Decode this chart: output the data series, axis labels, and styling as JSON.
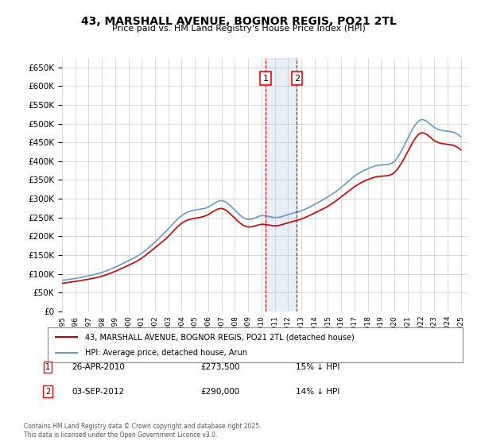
{
  "title": "43, MARSHALL AVENUE, BOGNOR REGIS, PO21 2TL",
  "subtitle": "Price paid vs. HM Land Registry's House Price Index (HPI)",
  "legend_line1": "43, MARSHALL AVENUE, BOGNOR REGIS, PO21 2TL (detached house)",
  "legend_line2": "HPI: Average price, detached house, Arun",
  "footer": "Contains HM Land Registry data © Crown copyright and database right 2025.\nThis data is licensed under the Open Government Licence v3.0.",
  "transactions": [
    {
      "id": 1,
      "date": "26-APR-2010",
      "price": "£273,500",
      "hpi_diff": "15% ↓ HPI",
      "x_year": 2010.32
    },
    {
      "id": 2,
      "date": "03-SEP-2012",
      "price": "£290,000",
      "hpi_diff": "14% ↓ HPI",
      "x_year": 2012.67
    }
  ],
  "red_color": "#cc0000",
  "blue_color": "#6699cc",
  "blue_fill_color": "#ddeeff",
  "grid_color": "#cccccc",
  "background_color": "#ffffff",
  "ylim": [
    0,
    675000
  ],
  "xlim": [
    1995,
    2025.5
  ],
  "ytick_step": 50000,
  "xlabel_color": "#000000",
  "hpi_years": [
    1995,
    1996,
    1997,
    1998,
    1999,
    2000,
    2001,
    2002,
    2003,
    2004,
    2005,
    2006,
    2007,
    2008,
    2009,
    2010,
    2011,
    2012,
    2013,
    2014,
    2015,
    2016,
    2017,
    2018,
    2019,
    2020,
    2021,
    2022,
    2023,
    2024,
    2025
  ],
  "hpi_values": [
    83000,
    88000,
    95000,
    104000,
    118000,
    135000,
    155000,
    185000,
    220000,
    255000,
    270000,
    278000,
    295000,
    270000,
    245000,
    255000,
    250000,
    258000,
    268000,
    285000,
    305000,
    330000,
    360000,
    380000,
    390000,
    400000,
    460000,
    510000,
    490000,
    480000,
    465000
  ],
  "red_years": [
    1995,
    1996,
    1997,
    1998,
    1999,
    2000,
    2001,
    2002,
    2003,
    2004,
    2005,
    2006,
    2007,
    2008,
    2009,
    2010,
    2011,
    2012,
    2013,
    2014,
    2015,
    2016,
    2017,
    2018,
    2019,
    2020,
    2021,
    2022,
    2023,
    2024,
    2025
  ],
  "red_values": [
    75000,
    80000,
    86000,
    94000,
    107000,
    123000,
    142000,
    170000,
    200000,
    235000,
    248000,
    258000,
    274000,
    248000,
    225000,
    232000,
    228000,
    236000,
    246000,
    262000,
    280000,
    305000,
    332000,
    351000,
    360000,
    370000,
    425000,
    475000,
    455000,
    445000,
    430000
  ]
}
